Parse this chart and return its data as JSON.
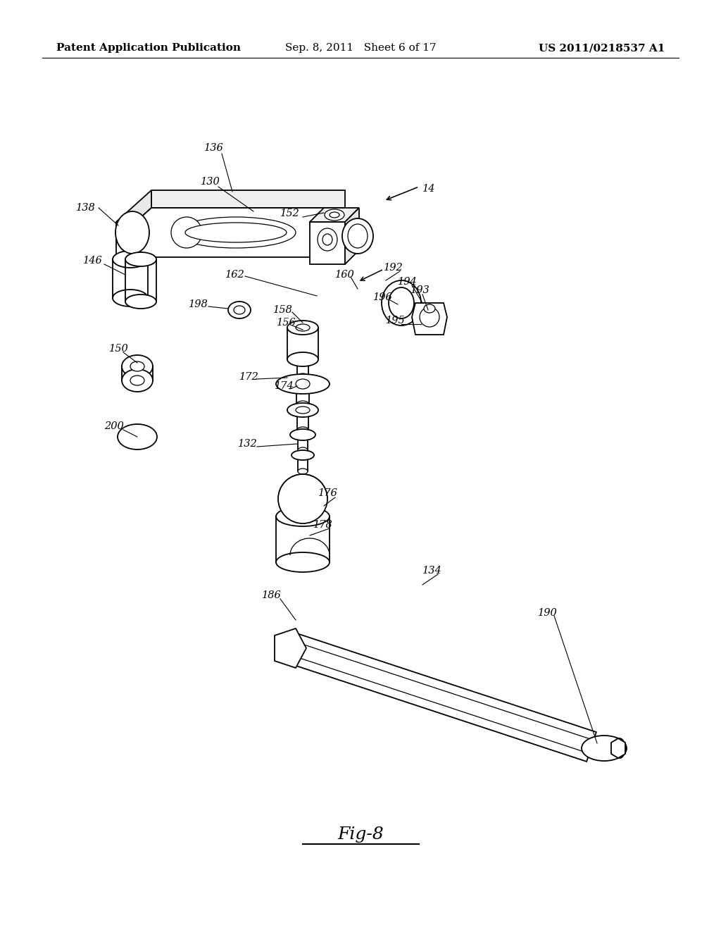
{
  "header_left": "Patent Application Publication",
  "header_mid": "Sep. 8, 2011   Sheet 6 of 17",
  "header_right": "US 2011/0218537 A1",
  "figure_label": "Fig-8",
  "bg_color": "#ffffff",
  "lc": "#000000",
  "header_fontsize": 11,
  "label_fontsize": 10.5,
  "fig_label_fontsize": 18
}
